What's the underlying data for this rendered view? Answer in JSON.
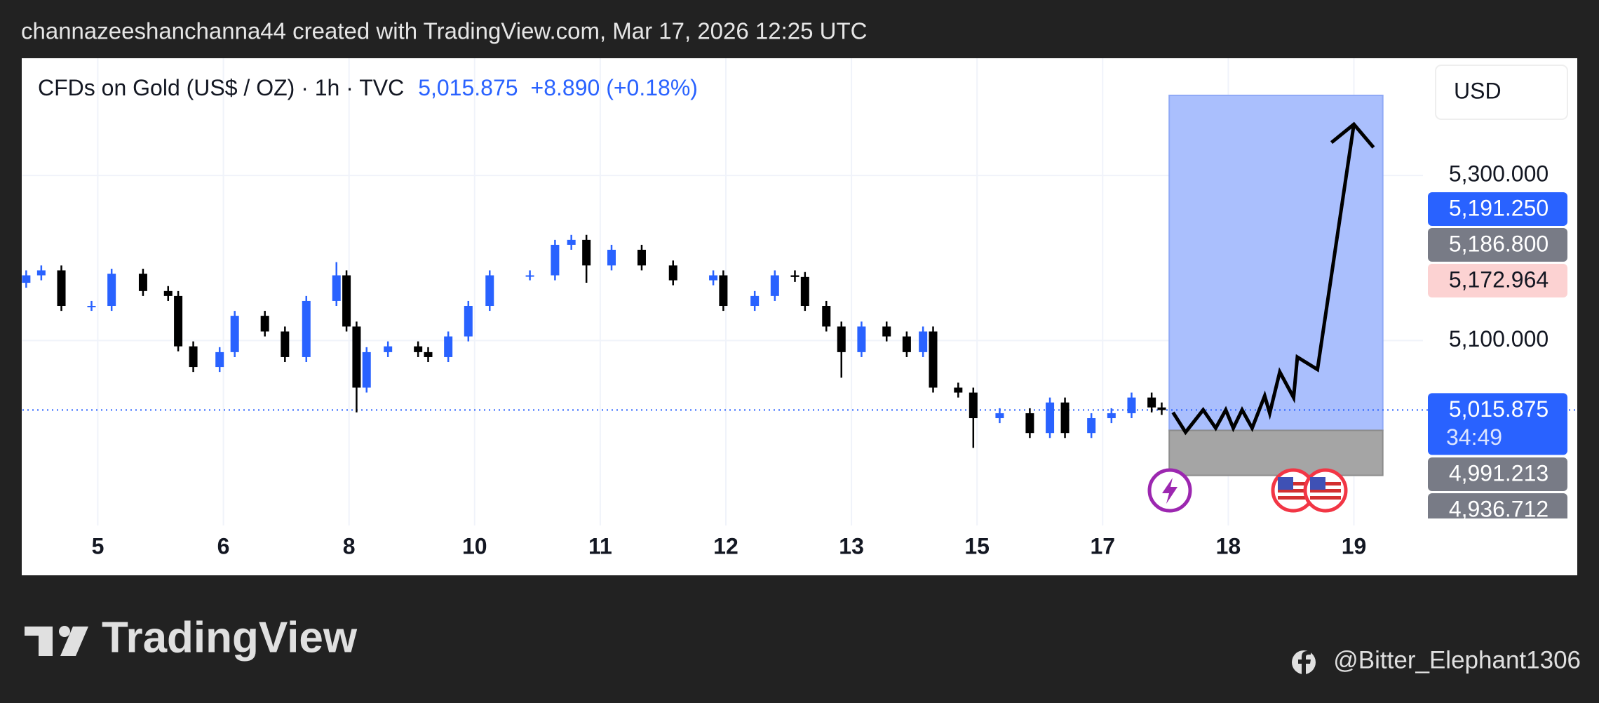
{
  "header": "channazeeshanchanna44 created with TradingView.com, Mar 17, 2026 12:25 UTC",
  "footer": {
    "brand": "TradingView",
    "handle": "@Bitter_Elephant1306"
  },
  "chart_data": {
    "type": "candlestick",
    "title": "CFDs on Gold (US$ / OZ) · 1h · TVC",
    "last_price_label": "5,015.875",
    "change_label": "+8.890 (+0.18%)",
    "currency": "USD",
    "up_color": "#2962ff",
    "down_color": "#000000",
    "x": [
      -0.57,
      -0.45,
      -0.29,
      -0.05,
      0.11,
      0.36,
      0.56,
      0.64,
      0.76,
      0.97,
      1.09,
      1.33,
      1.49,
      1.66,
      1.9,
      1.98,
      2.06,
      2.14,
      2.31,
      2.55,
      2.63,
      2.79,
      2.95,
      3.12,
      3.44,
      3.64,
      3.77,
      3.89,
      4.09,
      4.33,
      4.58,
      4.9,
      4.98,
      5.23,
      5.39,
      5.55,
      5.63,
      5.8,
      5.92,
      6.08,
      6.28,
      6.44,
      6.57,
      6.65,
      6.85,
      6.97,
      7.18,
      7.42,
      7.58,
      7.7,
      7.91,
      8.07,
      8.23,
      8.39,
      8.47
    ],
    "open": [
      5170,
      5179,
      5185,
      5142,
      5142,
      5181,
      5160,
      5154,
      5093,
      5068,
      5086,
      5130,
      5111,
      5080,
      5148,
      5179,
      5117,
      5043,
      5086,
      5093,
      5086,
      5080,
      5105,
      5142,
      5179,
      5179,
      5216,
      5222,
      5191,
      5210,
      5191,
      5173,
      5179,
      5142,
      5154,
      5179,
      5177,
      5142,
      5117,
      5086,
      5117,
      5105,
      5086,
      5111,
      5043,
      5037,
      5006,
      5012,
      4988,
      5025,
      4988,
      5006,
      5012,
      5031,
      5019
    ],
    "high": [
      5185,
      5191,
      5191,
      5148,
      5187,
      5187,
      5166,
      5160,
      5099,
      5092,
      5136,
      5136,
      5117,
      5154,
      5195,
      5185,
      5123,
      5092,
      5099,
      5099,
      5092,
      5111,
      5148,
      5185,
      5185,
      5222,
      5228,
      5228,
      5216,
      5216,
      5197,
      5185,
      5185,
      5160,
      5185,
      5185,
      5183,
      5148,
      5123,
      5123,
      5123,
      5111,
      5117,
      5117,
      5049,
      5043,
      5018,
      5018,
      5031,
      5031,
      5012,
      5018,
      5037,
      5037,
      5025
    ],
    "low": [
      5164,
      5173,
      5136,
      5136,
      5136,
      5154,
      5148,
      5087,
      5062,
      5062,
      5080,
      5105,
      5074,
      5074,
      5142,
      5111,
      5013,
      5037,
      5080,
      5080,
      5074,
      5074,
      5099,
      5136,
      5173,
      5173,
      5210,
      5170,
      5185,
      5185,
      5167,
      5167,
      5136,
      5136,
      5148,
      5171,
      5136,
      5111,
      5055,
      5080,
      5099,
      5080,
      5080,
      5037,
      5031,
      4970,
      5000,
      4982,
      4982,
      4982,
      4982,
      5000,
      5006,
      5013,
      5010
    ],
    "close": [
      5179,
      5185,
      5142,
      5142,
      5181,
      5160,
      5154,
      5093,
      5068,
      5086,
      5130,
      5111,
      5080,
      5148,
      5179,
      5117,
      5043,
      5086,
      5093,
      5086,
      5080,
      5105,
      5142,
      5179,
      5179,
      5216,
      5222,
      5191,
      5210,
      5191,
      5173,
      5179,
      5142,
      5154,
      5179,
      5177,
      5142,
      5117,
      5086,
      5117,
      5105,
      5086,
      5111,
      5043,
      5037,
      5006,
      5012,
      4988,
      5025,
      4988,
      5006,
      5012,
      5031,
      5019,
      5015.875
    ],
    "xlim": [
      -0.6,
      10.55
    ],
    "xticks": [
      {
        "value": 0,
        "label": "5"
      },
      {
        "value": 1,
        "label": "6"
      },
      {
        "value": 2,
        "label": "8"
      },
      {
        "value": 3,
        "label": "10"
      },
      {
        "value": 4,
        "label": "11"
      },
      {
        "value": 5,
        "label": "12"
      },
      {
        "value": 6,
        "label": "13"
      },
      {
        "value": 7,
        "label": "15"
      },
      {
        "value": 8,
        "label": "17"
      },
      {
        "value": 9,
        "label": "18"
      },
      {
        "value": 10,
        "label": "19"
      }
    ],
    "ylim": [
      4876,
      5442
    ],
    "yticks": [
      {
        "value": 5300,
        "label": "5,300.000"
      },
      {
        "value": 5100,
        "label": "5,100.000"
      }
    ],
    "grid": true,
    "price_badges": [
      "5,191.250",
      "5,186.800",
      "5,172.964"
    ],
    "countdown": "34:49",
    "position": {
      "x": [
        8.53,
        10.23
      ],
      "target": 5397,
      "entry": 4991.213,
      "stop": 4936.712,
      "entry_label": "4,991.213",
      "stop_label": "4,936.712"
    },
    "projection": {
      "x": [
        8.56,
        8.66,
        8.8,
        8.9,
        8.98,
        9.04,
        9.11,
        9.19,
        9.29,
        9.33,
        9.41,
        9.52,
        9.55,
        9.71,
        10.0
      ],
      "y": [
        5013,
        4989,
        5016,
        4994,
        5016,
        4994,
        5016,
        4994,
        5033,
        5012,
        5062,
        5031,
        5080,
        5065,
        5362
      ]
    }
  }
}
